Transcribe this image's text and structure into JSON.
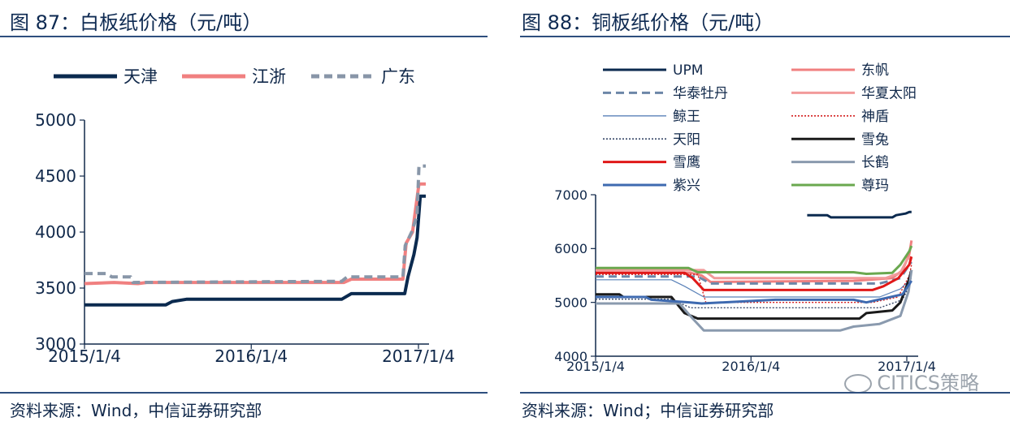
{
  "left": {
    "title": "图 87：白板纸价格（元/吨）",
    "source": "资料来源：Wind，中信证券研究部",
    "chart_data": {
      "type": "line",
      "title": "图 87：白板纸价格（元/吨）",
      "x_ticks": [
        "2015/1/4",
        "2016/1/4",
        "2017/1/4"
      ],
      "y_ticks": [
        3000,
        3500,
        4000,
        4500,
        5000
      ],
      "ylim": [
        3000,
        5000
      ],
      "legend_position": "top",
      "series": [
        {
          "name": "天津",
          "color": "#0b2a4f",
          "style": "solid",
          "points": [
            [
              "2015-01-04",
              3350
            ],
            [
              "2015-07-01",
              3350
            ],
            [
              "2015-07-15",
              3380
            ],
            [
              "2015-08-15",
              3400
            ],
            [
              "2016-07-20",
              3400
            ],
            [
              "2016-08-10",
              3450
            ],
            [
              "2016-12-05",
              3450
            ],
            [
              "2016-12-12",
              3600
            ],
            [
              "2016-12-25",
              3800
            ],
            [
              "2017-01-01",
              3950
            ],
            [
              "2017-01-08",
              4320
            ],
            [
              "2017-01-20",
              4320
            ]
          ]
        },
        {
          "name": "江浙",
          "color": "#f08080",
          "style": "solid",
          "points": [
            [
              "2015-01-04",
              3540
            ],
            [
              "2015-03-10",
              3550
            ],
            [
              "2015-05-01",
              3540
            ],
            [
              "2015-05-20",
              3550
            ],
            [
              "2016-07-25",
              3550
            ],
            [
              "2016-08-10",
              3580
            ],
            [
              "2016-12-01",
              3580
            ],
            [
              "2016-12-08",
              3900
            ],
            [
              "2016-12-22",
              4000
            ],
            [
              "2017-01-05",
              4430
            ],
            [
              "2017-01-20",
              4430
            ]
          ]
        },
        {
          "name": "广东",
          "color": "#8896a8",
          "style": "dashed",
          "points": [
            [
              "2015-01-04",
              3630
            ],
            [
              "2015-02-20",
              3630
            ],
            [
              "2015-03-05",
              3600
            ],
            [
              "2015-04-15",
              3600
            ],
            [
              "2015-04-20",
              3550
            ],
            [
              "2016-07-20",
              3560
            ],
            [
              "2016-08-01",
              3600
            ],
            [
              "2016-12-01",
              3600
            ],
            [
              "2016-12-06",
              3880
            ],
            [
              "2016-12-20",
              4000
            ],
            [
              "2017-01-01",
              4150
            ],
            [
              "2017-01-05",
              4590
            ],
            [
              "2017-01-20",
              4590
            ]
          ]
        }
      ]
    }
  },
  "right": {
    "title": "图 88：铜板纸价格（元/吨）",
    "source": "资料来源：Wind；中信证券研究部",
    "watermark": "CITICS策略",
    "chart_data": {
      "type": "line",
      "title": "图 88：铜板纸价格（元/吨）",
      "x_ticks": [
        "2015/1/4",
        "2016/1/4",
        "2017/1/4"
      ],
      "y_ticks": [
        4000,
        5000,
        6000,
        7000
      ],
      "ylim": [
        4000,
        7000
      ],
      "legend_position": "top",
      "series": [
        {
          "name": "UPM",
          "color": "#0b2a4f",
          "style": "solid",
          "points": [
            [
              "2016-05-15",
              6620
            ],
            [
              "2016-07-01",
              6620
            ],
            [
              "2016-07-10",
              6580
            ],
            [
              "2016-12-01",
              6580
            ],
            [
              "2016-12-10",
              6620
            ],
            [
              "2017-01-01",
              6650
            ],
            [
              "2017-01-10",
              6680
            ],
            [
              "2017-01-15",
              6680
            ]
          ]
        },
        {
          "name": "东帆",
          "color": "#f08080",
          "style": "solid",
          "points": [
            [
              "2015-01-04",
              5550
            ],
            [
              "2015-08-15",
              5550
            ],
            [
              "2015-09-10",
              5500
            ],
            [
              "2015-10-01",
              5380
            ],
            [
              "2016-09-01",
              5400
            ],
            [
              "2016-12-01",
              5450
            ],
            [
              "2016-12-25",
              5600
            ],
            [
              "2017-01-10",
              5900
            ],
            [
              "2017-01-15",
              6150
            ]
          ]
        },
        {
          "name": "华泰牡丹",
          "color": "#6c86a8",
          "style": "dashed",
          "points": [
            [
              "2015-01-04",
              5480
            ],
            [
              "2015-09-01",
              5480
            ],
            [
              "2015-10-01",
              5350
            ],
            [
              "2016-11-01",
              5350
            ],
            [
              "2016-12-20",
              5450
            ],
            [
              "2017-01-10",
              5700
            ],
            [
              "2017-01-15",
              5750
            ]
          ]
        },
        {
          "name": "华夏太阳",
          "color": "#f29a9a",
          "style": "solid",
          "points": [
            [
              "2015-01-04",
              5600
            ],
            [
              "2015-09-15",
              5600
            ],
            [
              "2015-10-10",
              5450
            ],
            [
              "2016-11-15",
              5450
            ],
            [
              "2016-12-20",
              5550
            ],
            [
              "2017-01-05",
              5800
            ],
            [
              "2017-01-15",
              5850
            ]
          ]
        },
        {
          "name": "鲸王",
          "color": "#5a82b8",
          "style": "thin",
          "points": [
            [
              "2015-01-04",
              5420
            ],
            [
              "2015-07-01",
              5420
            ],
            [
              "2015-08-01",
              5300
            ],
            [
              "2015-09-15",
              5100
            ],
            [
              "2016-11-01",
              5100
            ],
            [
              "2016-12-20",
              5250
            ],
            [
              "2017-01-15",
              5450
            ]
          ]
        },
        {
          "name": "神盾",
          "color": "#d42020",
          "style": "dotted",
          "points": [
            [
              "2015-01-04",
              5520
            ],
            [
              "2015-09-01",
              5520
            ],
            [
              "2015-09-20",
              5000
            ],
            [
              "2016-10-15",
              5000
            ],
            [
              "2016-12-15",
              5100
            ],
            [
              "2017-01-10",
              5500
            ],
            [
              "2017-01-15",
              5700
            ]
          ]
        },
        {
          "name": "天阳",
          "color": "#3a4a6a",
          "style": "dotted",
          "points": [
            [
              "2015-01-04",
              5060
            ],
            [
              "2015-07-01",
              5060
            ],
            [
              "2015-08-15",
              4900
            ],
            [
              "2016-11-01",
              4900
            ],
            [
              "2016-12-25",
              5050
            ],
            [
              "2017-01-15",
              5400
            ]
          ]
        },
        {
          "name": "雪兔",
          "color": "#1a1a1a",
          "style": "solid",
          "points": [
            [
              "2015-01-04",
              5150
            ],
            [
              "2015-03-01",
              5150
            ],
            [
              "2015-03-10",
              5100
            ],
            [
              "2015-07-01",
              5100
            ],
            [
              "2015-08-01",
              4800
            ],
            [
              "2015-09-01",
              4700
            ],
            [
              "2016-09-15",
              4700
            ],
            [
              "2016-10-01",
              4800
            ],
            [
              "2016-12-01",
              4850
            ],
            [
              "2016-12-20",
              5000
            ],
            [
              "2017-01-08",
              5400
            ],
            [
              "2017-01-15",
              5600
            ]
          ]
        },
        {
          "name": "雪鹰",
          "color": "#e01818",
          "style": "solid",
          "points": [
            [
              "2015-01-04",
              5550
            ],
            [
              "2015-08-01",
              5550
            ],
            [
              "2015-08-20",
              5450
            ],
            [
              "2015-09-15",
              5230
            ],
            [
              "2016-10-15",
              5230
            ],
            [
              "2016-11-10",
              5300
            ],
            [
              "2016-12-15",
              5450
            ],
            [
              "2017-01-10",
              5700
            ],
            [
              "2017-01-15",
              5850
            ]
          ]
        },
        {
          "name": "长鹤",
          "color": "#8a9aae",
          "style": "solid",
          "points": [
            [
              "2015-01-04",
              4980
            ],
            [
              "2015-07-20",
              4980
            ],
            [
              "2015-08-20",
              4700
            ],
            [
              "2015-09-15",
              4480
            ],
            [
              "2016-08-01",
              4480
            ],
            [
              "2016-09-01",
              4550
            ],
            [
              "2016-11-01",
              4600
            ],
            [
              "2016-12-20",
              4750
            ],
            [
              "2017-01-08",
              5200
            ],
            [
              "2017-01-15",
              5600
            ]
          ]
        },
        {
          "name": "紫兴",
          "color": "#3e6ab0",
          "style": "solid",
          "points": [
            [
              "2015-01-04",
              5100
            ],
            [
              "2015-05-01",
              5100
            ],
            [
              "2015-05-15",
              5050
            ],
            [
              "2015-08-15",
              5000
            ],
            [
              "2015-09-10",
              4980
            ],
            [
              "2016-03-01",
              5050
            ],
            [
              "2016-09-01",
              5050
            ],
            [
              "2016-10-01",
              5000
            ],
            [
              "2016-12-25",
              5150
            ],
            [
              "2017-01-15",
              5400
            ]
          ]
        },
        {
          "name": "尊玛",
          "color": "#6aa84f",
          "style": "solid",
          "points": [
            [
              "2015-01-04",
              5640
            ],
            [
              "2015-08-10",
              5640
            ],
            [
              "2015-09-01",
              5560
            ],
            [
              "2016-09-01",
              5560
            ],
            [
              "2016-10-01",
              5530
            ],
            [
              "2016-12-01",
              5550
            ],
            [
              "2016-12-20",
              5700
            ],
            [
              "2017-01-10",
              5950
            ],
            [
              "2017-01-15",
              6050
            ]
          ]
        }
      ]
    }
  }
}
